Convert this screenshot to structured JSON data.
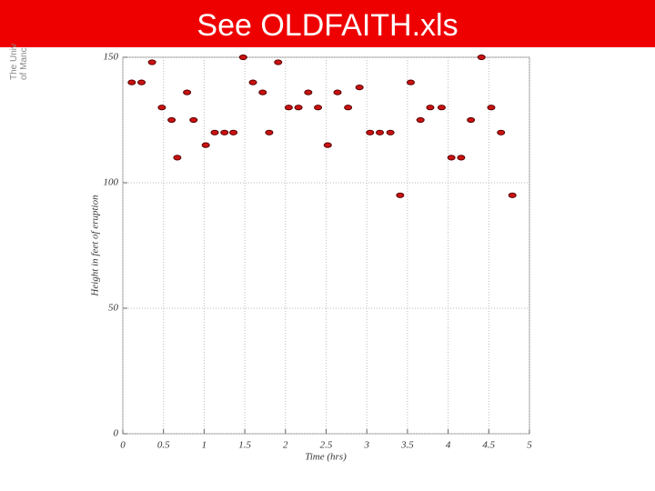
{
  "logo_lines": [
    "The Univ",
    "of Manc"
  ],
  "chart_data": {
    "type": "scatter",
    "title": "See OLDFAITH.xls",
    "xlabel": "Time (hrs)",
    "ylabel": "Height in feet of eruption",
    "color": "#cc1111",
    "x": [
      0.11,
      0.23,
      0.36,
      0.48,
      0.6,
      0.67,
      0.79,
      0.87,
      1.02,
      1.13,
      1.25,
      1.36,
      1.48,
      1.6,
      1.72,
      1.8,
      1.91,
      2.04,
      2.16,
      2.28,
      2.4,
      2.52,
      2.64,
      2.77,
      2.91,
      3.04,
      3.16,
      3.29,
      3.41,
      3.54,
      3.66,
      3.78,
      3.92,
      4.04,
      4.16,
      4.28,
      4.41,
      4.53,
      4.65,
      4.79
    ],
    "values": [
      140,
      140,
      148,
      130,
      125,
      110,
      136,
      125,
      115,
      120,
      120,
      120,
      150,
      140,
      136,
      120,
      148,
      130,
      130,
      136,
      130,
      115,
      136,
      130,
      138,
      120,
      120,
      120,
      95,
      140,
      125,
      130,
      130,
      110,
      110,
      125,
      150,
      130,
      120,
      95
    ],
    "xlim": [
      0,
      5
    ],
    "ylim": [
      0,
      150
    ],
    "xticks": [
      0,
      0.5,
      1,
      1.5,
      2,
      2.5,
      3,
      3.5,
      4,
      4.5,
      5
    ],
    "yticks": [
      0,
      50,
      100,
      150
    ],
    "grid": true
  }
}
